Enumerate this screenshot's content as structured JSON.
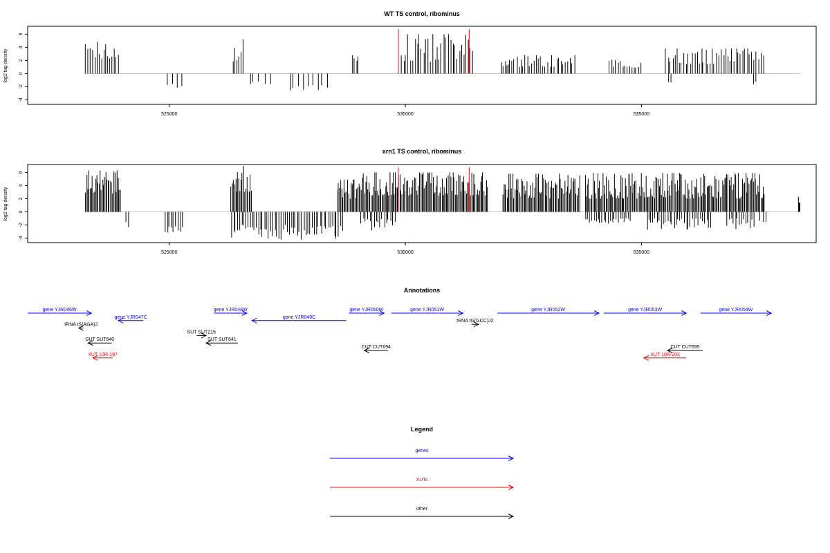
{
  "colors": {
    "gene": "#0000ff",
    "xut": "#ff0000",
    "other": "#000000",
    "bars": "#000000",
    "marker": "#ff0000",
    "baseline": "#bbbbbb"
  },
  "chart_data": [
    {
      "type": "bar",
      "title": "WT TS control, ribominus",
      "ylabel": "log2 tag density",
      "xlabel": "",
      "xlim": [
        522000,
        538700
      ],
      "ylim": [
        -4.7,
        7.2
      ],
      "xticks": [
        525000,
        530000,
        535000
      ],
      "xtick_labels": [
        "525000",
        "530000",
        "535000"
      ],
      "yticks": [
        -4,
        -2,
        0,
        2,
        4,
        6
      ],
      "ytick_labels": [
        "-4",
        "-2",
        "0",
        "2",
        "4",
        "6"
      ],
      "markers": [
        529850,
        531350
      ],
      "grid": false,
      "positive_regions": [
        [
          523220,
          523950,
          2.2,
          4.8
        ],
        [
          526320,
          526600,
          1.8,
          5.8
        ],
        [
          528850,
          529030,
          1.2,
          4.5
        ],
        [
          529900,
          531450,
          1.8,
          6.0
        ],
        [
          532000,
          532200,
          1.0,
          3.2
        ],
        [
          532150,
          533600,
          1.0,
          2.8
        ],
        [
          534300,
          535000,
          0.9,
          2.2
        ],
        [
          535500,
          537600,
          1.4,
          3.8
        ]
      ],
      "negative_regions": [
        [
          524900,
          525300,
          -1.5,
          -2.7
        ],
        [
          526650,
          527200,
          -1.2,
          -1.7
        ],
        [
          527500,
          528400,
          -1.6,
          -2.9
        ],
        [
          535500,
          535700,
          -1.0,
          -1.7
        ],
        [
          537350,
          537450,
          -1.2,
          -2.0
        ]
      ]
    },
    {
      "type": "bar",
      "title": "xrn1 TS control, ribominus",
      "ylabel": "log2 tag density",
      "xlabel": "",
      "xlim": [
        522000,
        538700
      ],
      "ylim": [
        -4.7,
        7.2
      ],
      "xticks": [
        525000,
        530000,
        535000
      ],
      "xtick_labels": [
        "525000",
        "530000",
        "535000"
      ],
      "yticks": [
        -4,
        -2,
        0,
        2,
        4,
        6
      ],
      "ytick_labels": [
        "-4",
        "-2",
        "0",
        "2",
        "4",
        "6"
      ],
      "markers": [
        529850,
        531350
      ],
      "grid": false,
      "positive_regions": [
        [
          523220,
          523980,
          2.8,
          6.3
        ],
        [
          526300,
          526750,
          3.0,
          7.0
        ],
        [
          528550,
          529030,
          2.0,
          4.9
        ],
        [
          529030,
          531750,
          2.5,
          6.0
        ],
        [
          532050,
          533700,
          2.0,
          5.8
        ],
        [
          533800,
          537620,
          2.0,
          5.9
        ],
        [
          538320,
          538360,
          1.0,
          2.5
        ]
      ],
      "negative_regions": [
        [
          524050,
          524150,
          -1.5,
          -3.2
        ],
        [
          524900,
          525300,
          -2.2,
          -3.4
        ],
        [
          526300,
          528700,
          -2.0,
          -4.3
        ],
        [
          529050,
          529800,
          -1.0,
          -3.0
        ],
        [
          533800,
          534800,
          -1.0,
          -1.8
        ],
        [
          535100,
          536500,
          -1.0,
          -2.8
        ],
        [
          536800,
          537400,
          -1.0,
          -2.7
        ],
        [
          537500,
          537650,
          -1.0,
          -2.2
        ]
      ]
    }
  ],
  "annotations": {
    "title": "Annotations",
    "items": [
      {
        "label": "gene YJR046W",
        "type": "gene",
        "start": 522000,
        "end": 523350,
        "dir": "+",
        "row": 0
      },
      {
        "label": "gene YJR047C",
        "type": "gene",
        "start": 523920,
        "end": 524450,
        "dir": "-",
        "row": 1
      },
      {
        "label": "gene YJR048W",
        "type": "gene",
        "start": 525950,
        "end": 526640,
        "dir": "+",
        "row": 0
      },
      {
        "label": "gene YJR049C",
        "type": "gene",
        "start": 526750,
        "end": 528750,
        "dir": "-",
        "row": 1
      },
      {
        "label": "gene YJR050W",
        "type": "gene",
        "start": 528800,
        "end": 529550,
        "dir": "+",
        "row": 0
      },
      {
        "label": "gene YJR051W",
        "type": "gene",
        "start": 529700,
        "end": 531220,
        "dir": "+",
        "row": 0
      },
      {
        "label": "gene YJR052W",
        "type": "gene",
        "start": 531950,
        "end": 534100,
        "dir": "+",
        "row": 0
      },
      {
        "label": "gene YJR053W",
        "type": "gene",
        "start": 534200,
        "end": 535950,
        "dir": "+",
        "row": 0
      },
      {
        "label": "gene YJR054W",
        "type": "gene",
        "start": 536250,
        "end": 537750,
        "dir": "+",
        "row": 0
      },
      {
        "label": "tRNA tS(AGA)J",
        "type": "other",
        "start": 523080,
        "end": 523180,
        "dir": "-",
        "row": 2
      },
      {
        "label": "tRNA tG(GCC)J2",
        "type": "other",
        "start": 531400,
        "end": 531550,
        "dir": "+",
        "row": 1.5
      },
      {
        "label": "SUT SUT215",
        "type": "other",
        "start": 525580,
        "end": 525780,
        "dir": "+",
        "row": 3
      },
      {
        "label": "SUT SUT640",
        "type": "other",
        "start": 523280,
        "end": 523780,
        "dir": "-",
        "row": 4
      },
      {
        "label": "SUT SUT641",
        "type": "other",
        "start": 525780,
        "end": 526450,
        "dir": "-",
        "row": 4
      },
      {
        "label": "CUT CUT694",
        "type": "other",
        "start": 529130,
        "end": 529630,
        "dir": "-",
        "row": 5
      },
      {
        "label": "CUT CUT695",
        "type": "other",
        "start": 535550,
        "end": 536300,
        "dir": "-",
        "row": 5
      },
      {
        "label": "XUT 10R-197",
        "type": "xut",
        "start": 523380,
        "end": 523800,
        "dir": "-",
        "row": 6
      },
      {
        "label": "XUT 10R-203",
        "type": "xut",
        "start": 535050,
        "end": 535950,
        "dir": "-",
        "row": 6
      }
    ]
  },
  "legend": {
    "title": "Legend",
    "items": [
      {
        "label": "genes",
        "type": "gene"
      },
      {
        "label": "XUTs",
        "type": "xut"
      },
      {
        "label": "other",
        "type": "other"
      }
    ]
  }
}
